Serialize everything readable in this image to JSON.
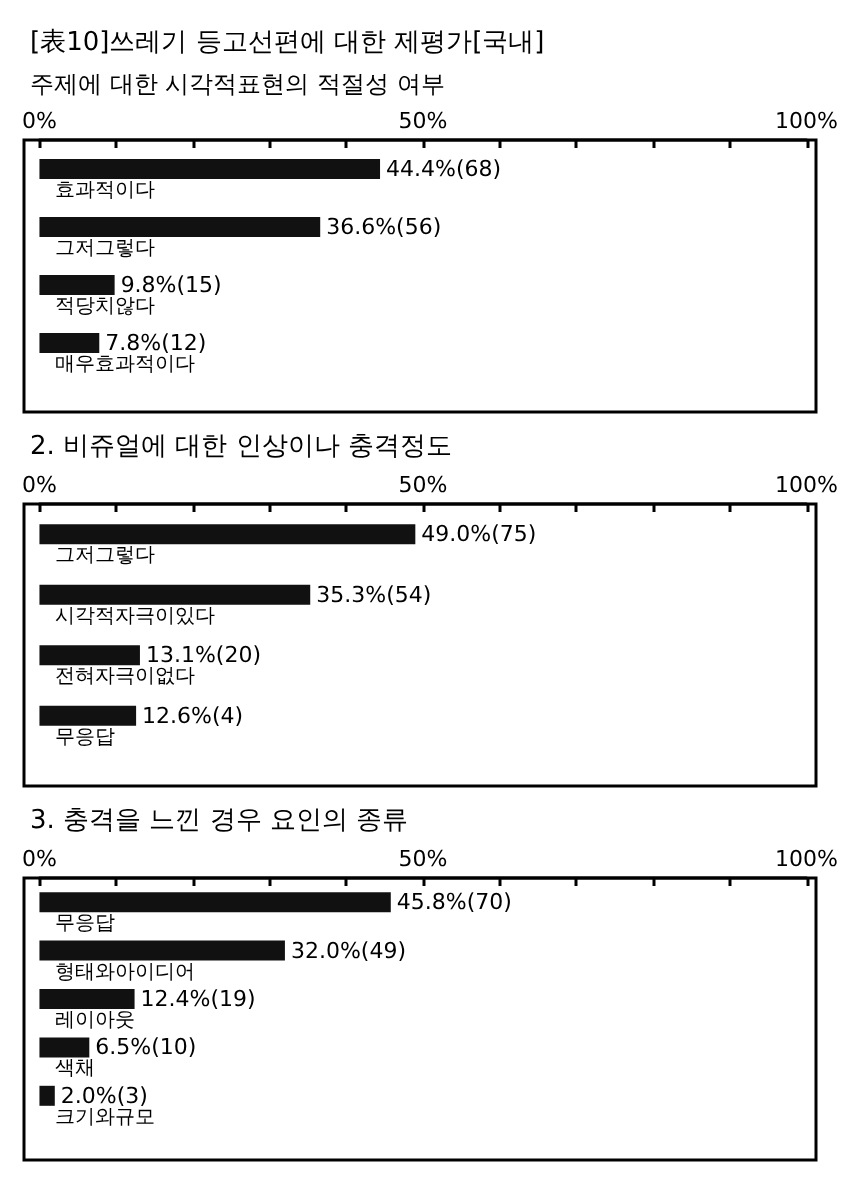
{
  "chart_data": [
    {
      "type": "bar",
      "orientation": "horizontal",
      "title": "[表10]쓰레기 등고선편에 대한 제평가[국내]",
      "subtitle": "주제에 대한 시각적표현의 적절성 여부",
      "categories": [
        "효과적이다",
        "그저그렇다",
        "적당치않다",
        "매우효과적이다"
      ],
      "values": [
        44.4,
        36.6,
        9.8,
        7.8
      ],
      "color": "#111111",
      "value_labels": [
        "44.4%(68)",
        "36.6%(56)",
        "9.8%(15)",
        "7.8%(12)"
      ],
      "xlim": [
        0,
        100
      ],
      "xticks": [
        {
          "value": 0,
          "label": "0%"
        },
        {
          "value": 10,
          "label": null
        },
        {
          "value": 20,
          "label": null
        },
        {
          "value": 30,
          "label": null
        },
        {
          "value": 40,
          "label": null
        },
        {
          "value": 50,
          "label": "50%"
        },
        {
          "value": 60,
          "label": null
        },
        {
          "value": 70,
          "label": null
        },
        {
          "value": 80,
          "label": null
        },
        {
          "value": 90,
          "label": null
        },
        {
          "value": 100,
          "label": "100%"
        }
      ],
      "grid": false
    },
    {
      "type": "bar",
      "orientation": "horizontal",
      "title": "2. 비쥬얼에 대한 인상이나 충격정도",
      "categories": [
        "그저그렇다",
        "시각적자극이있다",
        "전혀자극이없다",
        "무응답"
      ],
      "values": [
        49.0,
        35.3,
        13.1,
        12.6
      ],
      "color": "#111111",
      "value_labels": [
        "49.0%(75)",
        "35.3%(54)",
        "13.1%(20)",
        "12.6%(4)"
      ],
      "xlim": [
        0,
        100
      ],
      "xticks": [
        {
          "value": 0,
          "label": "0%"
        },
        {
          "value": 10,
          "label": null
        },
        {
          "value": 20,
          "label": null
        },
        {
          "value": 30,
          "label": null
        },
        {
          "value": 40,
          "label": null
        },
        {
          "value": 50,
          "label": "50%"
        },
        {
          "value": 60,
          "label": null
        },
        {
          "value": 70,
          "label": null
        },
        {
          "value": 80,
          "label": null
        },
        {
          "value": 90,
          "label": null
        },
        {
          "value": 100,
          "label": "100%"
        }
      ],
      "grid": false
    },
    {
      "type": "bar",
      "orientation": "horizontal",
      "title": "3. 충격을 느낀 경우 요인의 종류",
      "categories": [
        "무응답",
        "형태와아이디어",
        "레이아웃",
        "색채",
        "크기와규모"
      ],
      "values": [
        45.8,
        32.0,
        12.4,
        6.5,
        2.0
      ],
      "color": "#111111",
      "value_labels": [
        "45.8%(70)",
        "32.0%(49)",
        "12.4%(19)",
        "6.5%(10)",
        "2.0%(3)"
      ],
      "xlim": [
        0,
        100
      ],
      "xticks": [
        {
          "value": 0,
          "label": "0%"
        },
        {
          "value": 10,
          "label": null
        },
        {
          "value": 20,
          "label": null
        },
        {
          "value": 30,
          "label": null
        },
        {
          "value": 40,
          "label": null
        },
        {
          "value": 50,
          "label": "50%"
        },
        {
          "value": 60,
          "label": null
        },
        {
          "value": 70,
          "label": null
        },
        {
          "value": 80,
          "label": null
        },
        {
          "value": 90,
          "label": null
        },
        {
          "value": 100,
          "label": "100%"
        }
      ],
      "grid": false
    }
  ]
}
